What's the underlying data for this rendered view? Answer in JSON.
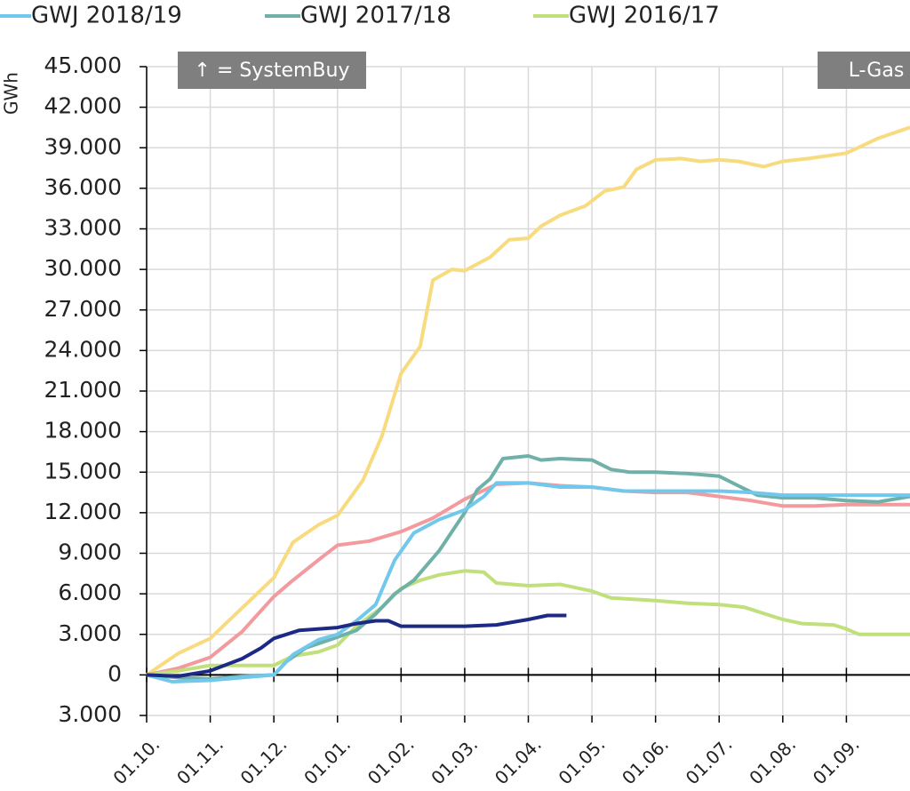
{
  "chart_data": {
    "type": "line",
    "y_label": "GWh",
    "annotations": [
      "↑ = SystemBuy",
      "L-Gas"
    ],
    "xlim": [
      0,
      12
    ],
    "xticks": [
      {
        "value": 0,
        "label": "01.10."
      },
      {
        "value": 1,
        "label": "01.11."
      },
      {
        "value": 2,
        "label": "01.12."
      },
      {
        "value": 3,
        "label": "01.01."
      },
      {
        "value": 4,
        "label": "01.02."
      },
      {
        "value": 5,
        "label": "01.03."
      },
      {
        "value": 6,
        "label": "01.04."
      },
      {
        "value": 7,
        "label": "01.05."
      },
      {
        "value": 8,
        "label": "01.06."
      },
      {
        "value": 9,
        "label": "01.07."
      },
      {
        "value": 10,
        "label": "01.08."
      },
      {
        "value": 11,
        "label": "01.09."
      }
    ],
    "ylim": [
      -3000,
      45000
    ],
    "yticks": [
      {
        "value": -3000,
        "label": "3.000"
      },
      0,
      {
        "value": 3000,
        "label": "3.000"
      },
      {
        "value": 6000,
        "label": "6.000"
      },
      {
        "value": 9000,
        "label": "9.000"
      },
      {
        "value": 12000,
        "label": "12.000"
      },
      {
        "value": 15000,
        "label": "15.000"
      },
      {
        "value": 18000,
        "label": "18.000"
      },
      {
        "value": 21000,
        "label": "21.000"
      },
      {
        "value": 24000,
        "label": "24.000"
      },
      {
        "value": 27000,
        "label": "27.000"
      },
      {
        "value": 30000,
        "label": "30.000"
      },
      {
        "value": 33000,
        "label": "33.000"
      },
      {
        "value": 36000,
        "label": "36.000"
      },
      {
        "value": 39000,
        "label": "39.000"
      },
      {
        "value": 42000,
        "label": "42.000"
      },
      {
        "value": 45000,
        "label": "45.000"
      }
    ],
    "grid": true,
    "series": [
      {
        "color": "#f8db7e",
        "x": [
          0,
          0.5,
          1.0,
          1.4,
          2.0,
          2.3,
          2.7,
          3.0,
          3.4,
          3.7,
          4.0,
          4.3,
          4.5,
          4.8,
          5.0,
          5.4,
          5.7,
          6.0,
          6.2,
          6.5,
          6.9,
          7.2,
          7.5,
          7.7,
          8.0,
          8.4,
          8.7,
          9.0,
          9.3,
          9.7,
          10.0,
          10.4,
          11.0,
          11.5,
          12.0
        ],
        "values": [
          0,
          1600,
          2700,
          4500,
          7200,
          9800,
          11100,
          11800,
          14400,
          17700,
          22300,
          24300,
          29200,
          30000,
          29900,
          30900,
          32200,
          32300,
          33200,
          34000,
          34700,
          35800,
          36100,
          37400,
          38100,
          38200,
          38000,
          38100,
          38000,
          37600,
          38000,
          38200,
          38600,
          39700,
          40500
        ]
      },
      {
        "color": "#f29a9e",
        "x": [
          0,
          0.5,
          1.0,
          1.5,
          2.0,
          2.3,
          2.7,
          3.0,
          3.5,
          4.0,
          4.5,
          5.0,
          5.5,
          6.0,
          6.5,
          7.0,
          7.5,
          8.0,
          8.5,
          9.0,
          9.5,
          10.0,
          10.5,
          11.0,
          11.5,
          12.0
        ],
        "values": [
          0,
          500,
          1300,
          3200,
          5800,
          7000,
          8500,
          9600,
          9900,
          10600,
          11600,
          13000,
          14100,
          14200,
          14000,
          13900,
          13600,
          13500,
          13500,
          13200,
          12900,
          12500,
          12500,
          12600,
          12600,
          12600
        ]
      },
      {
        "name": "GWJ 2016/17",
        "color": "#bfe07a",
        "x": [
          0,
          0.5,
          1.0,
          1.5,
          2.0,
          2.3,
          2.7,
          3.0,
          3.3,
          3.7,
          4.0,
          4.3,
          4.6,
          5.0,
          5.3,
          5.5,
          6.0,
          6.5,
          7.0,
          7.3,
          8.0,
          8.5,
          9.0,
          9.4,
          9.8,
          10.0,
          10.3,
          10.8,
          11.0,
          11.2,
          11.6,
          12.0
        ],
        "values": [
          0,
          300,
          700,
          700,
          700,
          1400,
          1700,
          2200,
          3600,
          5000,
          6400,
          7000,
          7400,
          7700,
          7600,
          6800,
          6600,
          6700,
          6200,
          5700,
          5500,
          5300,
          5200,
          5000,
          4400,
          4100,
          3800,
          3700,
          3400,
          3000,
          3000,
          3000
        ]
      },
      {
        "name": "GWJ 2017/18",
        "color": "#6fb0a8",
        "x": [
          0,
          0.5,
          1.0,
          1.5,
          2.0,
          2.2,
          2.5,
          3.0,
          3.3,
          3.6,
          3.9,
          4.2,
          4.6,
          5.0,
          5.2,
          5.4,
          5.6,
          6.0,
          6.2,
          6.5,
          7.0,
          7.3,
          7.6,
          8.0,
          8.5,
          9.0,
          9.3,
          9.6,
          10.0,
          10.5,
          11.0,
          11.5,
          12.0
        ],
        "values": [
          0,
          -200,
          -300,
          -100,
          0,
          1000,
          2000,
          2800,
          3300,
          4500,
          6000,
          7000,
          9200,
          12000,
          13700,
          14500,
          16000,
          16200,
          15900,
          16000,
          15900,
          15200,
          15000,
          15000,
          14900,
          14700,
          14000,
          13300,
          13100,
          13100,
          12900,
          12800,
          13200
        ]
      },
      {
        "name": "GWJ 2018/19",
        "color": "#72c8ec",
        "x": [
          0,
          0.4,
          1.0,
          1.5,
          2.0,
          2.3,
          2.7,
          3.0,
          3.3,
          3.6,
          3.9,
          4.2,
          4.6,
          5.0,
          5.3,
          5.5,
          6.0,
          6.5,
          7.0,
          7.5,
          8.0,
          9.0,
          9.5,
          10.0,
          11.0,
          12.0
        ],
        "values": [
          0,
          -500,
          -400,
          -200,
          0,
          1500,
          2600,
          3000,
          4000,
          5200,
          8500,
          10500,
          11500,
          12200,
          13200,
          14200,
          14200,
          13900,
          13900,
          13600,
          13600,
          13600,
          13500,
          13300,
          13300,
          13300
        ]
      },
      {
        "color": "#1c2a85",
        "x": [
          0,
          0.5,
          1.0,
          1.5,
          1.8,
          2.0,
          2.4,
          3.0,
          3.3,
          3.6,
          3.8,
          4.0,
          4.5,
          5.0,
          5.5,
          6.0,
          6.3,
          6.6
        ],
        "values": [
          0,
          -100,
          300,
          1200,
          2000,
          2700,
          3300,
          3500,
          3800,
          4000,
          4000,
          3600,
          3600,
          3600,
          3700,
          4100,
          4400,
          4400
        ]
      }
    ]
  }
}
